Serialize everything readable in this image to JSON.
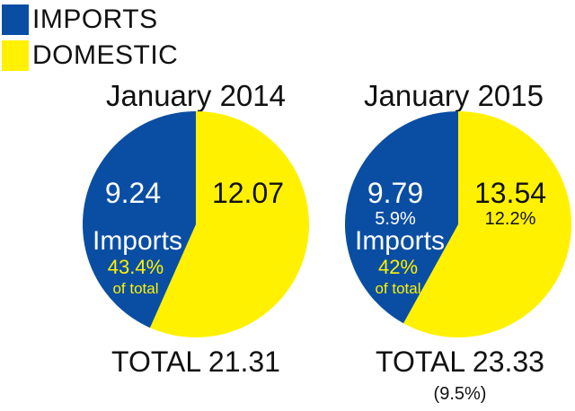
{
  "colors": {
    "imports": "#0a4ea3",
    "domestic": "#fff100",
    "imports_pct_text": "#fff100"
  },
  "legend": [
    {
      "label": "IMPORTS",
      "color": "#0a4ea3"
    },
    {
      "label": "DOMESTIC",
      "color": "#fff100"
    }
  ],
  "chart_data": [
    {
      "type": "pie",
      "title": "January 2014",
      "slices": [
        {
          "name": "IMPORTS",
          "value": 9.24,
          "label": "9.24",
          "change": ""
        },
        {
          "name": "DOMESTIC",
          "value": 12.07,
          "label": "12.07",
          "change": ""
        }
      ],
      "imports_text": "Imports",
      "imports_share": "43.4%",
      "imports_share_caption": "of total",
      "total": "TOTAL 21.31",
      "total_change": ""
    },
    {
      "type": "pie",
      "title": "January 2015",
      "slices": [
        {
          "name": "IMPORTS",
          "value": 9.79,
          "label": "9.79",
          "change": "5.9%"
        },
        {
          "name": "DOMESTIC",
          "value": 13.54,
          "label": "13.54",
          "change": "12.2%"
        }
      ],
      "imports_text": "Imports",
      "imports_share": "42%",
      "imports_share_caption": "of total",
      "total": "TOTAL 23.33",
      "total_change": "(9.5%)"
    }
  ]
}
